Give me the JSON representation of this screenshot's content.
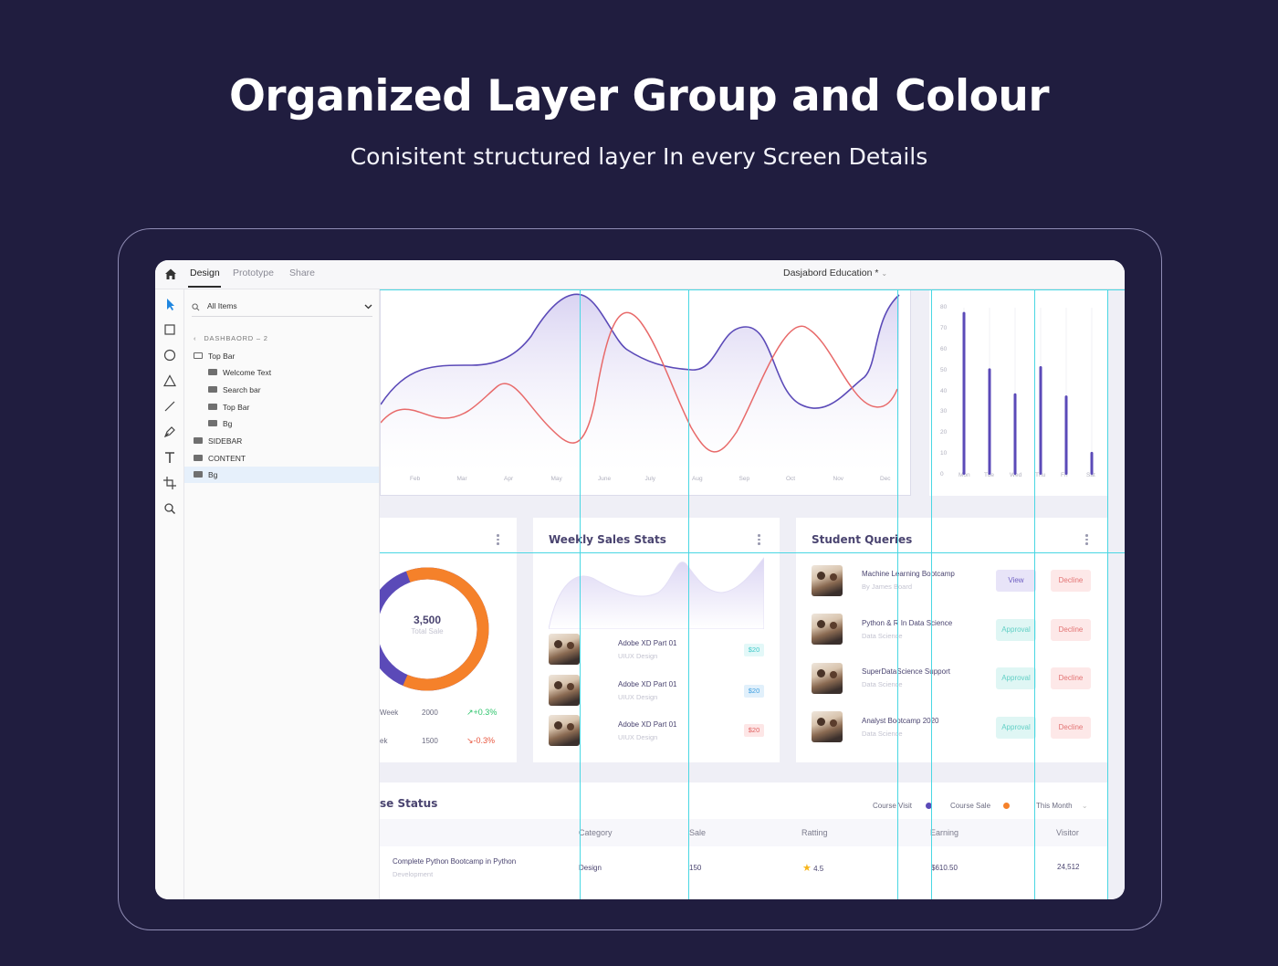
{
  "hero": {
    "title": "Organized Layer Group and Colour",
    "subtitle": "Conisitent structured layer In every Screen Details"
  },
  "app": {
    "tabs": [
      "Design",
      "Prototype",
      "Share"
    ],
    "active_tab": "Design",
    "doc_title": "Dasjabord Education *",
    "search_placeholder": "All Items",
    "layers": {
      "page": "DASHBAORD – 2",
      "items": [
        {
          "label": "Top Bar",
          "level": 0
        },
        {
          "label": "Welcome Text",
          "level": 1
        },
        {
          "label": "Search bar",
          "level": 1
        },
        {
          "label": "Top Bar",
          "level": 1
        },
        {
          "label": "Bg",
          "level": 1
        },
        {
          "label": "SIDEBAR",
          "level": 0
        },
        {
          "label": "CONTENT",
          "level": 0
        },
        {
          "label": "Bg",
          "level": 0,
          "selected": true
        }
      ]
    },
    "tools": [
      "select-icon",
      "rectangle-icon",
      "ellipse-icon",
      "triangle-icon",
      "line-icon",
      "pen-icon",
      "text-icon",
      "frame-icon",
      "search-icon"
    ]
  },
  "canvas": {
    "line_chart": {
      "months": [
        "Feb",
        "Mar",
        "Apr",
        "May",
        "June",
        "July",
        "Aug",
        "Sep",
        "Oct",
        "Nov",
        "Dec"
      ]
    },
    "bar_chart": {
      "y_ticks": [
        "80",
        "70",
        "60",
        "50",
        "40",
        "30",
        "20",
        "10",
        "0"
      ],
      "days": [
        "Mon",
        "Tue",
        "Wed",
        "Thu",
        "Fri",
        "Sat"
      ],
      "values": [
        78,
        51,
        39,
        52,
        38,
        11
      ],
      "ymax": 80
    },
    "donut": {
      "value": "3,500",
      "label": "Total Sale",
      "orange_fraction": 0.62,
      "rows": [
        {
          "name": "Week",
          "value": "2000",
          "change": "+0.3%",
          "trend": "up"
        },
        {
          "name": "ek",
          "value": "1500",
          "change": "-0.3%",
          "trend": "down"
        }
      ]
    },
    "weekly": {
      "title": "Weekly Sales Stats",
      "items": [
        {
          "title": "Adobe XD Part 01",
          "sub": "UIUX Design",
          "price": "$20",
          "tone": "teal"
        },
        {
          "title": "Adobe XD Part 01",
          "sub": "UIUX Design",
          "price": "$20",
          "tone": "blue"
        },
        {
          "title": "Adobe XD Part 01",
          "sub": "UIUX Design",
          "price": "$20",
          "tone": "red"
        }
      ]
    },
    "queries": {
      "title": "Student Queries",
      "items": [
        {
          "title": "Machine Learning Bootcamp",
          "sub": "By James Board",
          "action": "View",
          "decline": "Decline"
        },
        {
          "title": "Python & R In Data Science",
          "sub": "Data Science",
          "action": "Approval",
          "decline": "Decline"
        },
        {
          "title": "SuperDataScience Support",
          "sub": "Data Science",
          "action": "Approval",
          "decline": "Decline"
        },
        {
          "title": "Analyst Bootcamp 2020",
          "sub": "Data Science",
          "action": "Approval",
          "decline": "Decline"
        }
      ]
    },
    "status": {
      "title": "se Status",
      "legend": [
        {
          "label": "Course Visit",
          "color": "#5b4ab8"
        },
        {
          "label": "Course Sale",
          "color": "#f5812a"
        }
      ],
      "period": "This Month",
      "headers": [
        "Category",
        "Sale",
        "Ratting",
        "Earning",
        "Visitor"
      ],
      "row": {
        "course": "Complete Python Bootcamp in Python",
        "course_sub": "Development",
        "category": "Design",
        "sale": "150",
        "rating": "4.5",
        "earning": "$610.50",
        "visitor": "24,512"
      }
    }
  },
  "colors": {
    "background": "#201d3f",
    "purple": "#5b4ab8",
    "red_line": "#e86a6a",
    "orange": "#f5812a",
    "guide": "#49d7e3"
  }
}
